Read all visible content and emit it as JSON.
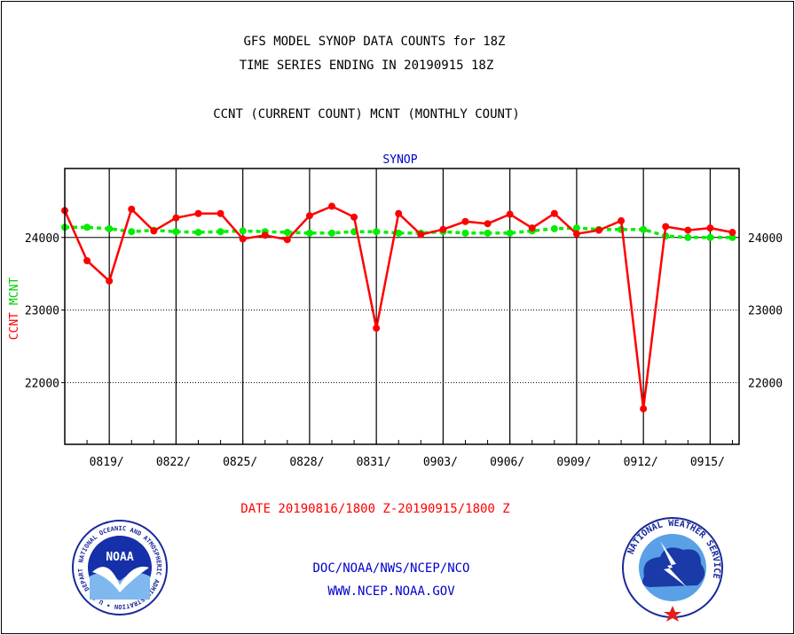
{
  "header": {
    "title_line1": "GFS MODEL SYNOP DATA COUNTS for 18Z",
    "title_line2": "TIME SERIES ENDING IN 20190915 18Z",
    "subtitle": "CCNT (CURRENT COUNT) MCNT (MONTHLY COUNT)"
  },
  "footer": {
    "date_range": "DATE 20190816/1800 Z-20190915/1800 Z",
    "org": "DOC/NOAA/NWS/NCEP/NCO",
    "url": "WWW.NCEP.NOAA.GOV"
  },
  "logos": {
    "noaa_text": "NOAA",
    "noaa_ring": "NATIONAL OCEANIC AND ATMOSPHERIC ADMINISTRATION • U.S. DEPARTMENT OF COMMERCE •",
    "nws_ring": "NATIONAL WEATHER SERVICE"
  },
  "colors": {
    "ccnt": "#ff0000",
    "mcnt": "#00ee00",
    "blue": "#0000cc",
    "frame": "#000000"
  },
  "chart_data": {
    "type": "line",
    "title": "SYNOP",
    "ylabel_ccnt": "CCNT",
    "ylabel_mcnt": "MCNT",
    "xlim": [
      0,
      30.3
    ],
    "ylim": [
      21150,
      24950
    ],
    "y_ticks": [
      22000,
      23000,
      24000
    ],
    "y_tick_labels": [
      "22000",
      "23000",
      "24000"
    ],
    "x_ticks": [
      2,
      5,
      8,
      11,
      14,
      17,
      20,
      23,
      26,
      29
    ],
    "x_tick_labels": [
      "0819/",
      "0822/",
      "0825/",
      "0828/",
      "0831/",
      "0903/",
      "0906/",
      "0909/",
      "0912/",
      "0915/"
    ],
    "grid_y": true,
    "grid_x": true,
    "series": [
      {
        "name": "CCNT",
        "color": "#ff0000",
        "style": "solid",
        "x": [
          0,
          1,
          2,
          3,
          4,
          5,
          6,
          7,
          8,
          9,
          10,
          11,
          12,
          13,
          14,
          15,
          16,
          17,
          18,
          19,
          20,
          21,
          22,
          23,
          24,
          25,
          26,
          27,
          28,
          29,
          30
        ],
        "values": [
          24370,
          23680,
          23400,
          24390,
          24090,
          24270,
          24330,
          24330,
          23980,
          24030,
          23970,
          24300,
          24430,
          24280,
          22750,
          24330,
          24040,
          24110,
          24220,
          24190,
          24320,
          24130,
          24330,
          24050,
          24100,
          24230,
          21640,
          24150,
          24100,
          24130,
          24070
        ]
      },
      {
        "name": "MCNT",
        "color": "#00ee00",
        "style": "dashed",
        "x": [
          0,
          1,
          2,
          3,
          4,
          5,
          6,
          7,
          8,
          9,
          10,
          11,
          12,
          13,
          14,
          15,
          16,
          17,
          18,
          19,
          20,
          21,
          22,
          23,
          24,
          25,
          26,
          27,
          28,
          29,
          30
        ],
        "values": [
          24140,
          24140,
          24120,
          24080,
          24100,
          24080,
          24070,
          24080,
          24090,
          24080,
          24070,
          24060,
          24060,
          24080,
          24080,
          24060,
          24060,
          24080,
          24060,
          24060,
          24060,
          24090,
          24120,
          24130,
          24110,
          24110,
          24110,
          24020,
          24000,
          24000,
          24000
        ]
      }
    ]
  }
}
